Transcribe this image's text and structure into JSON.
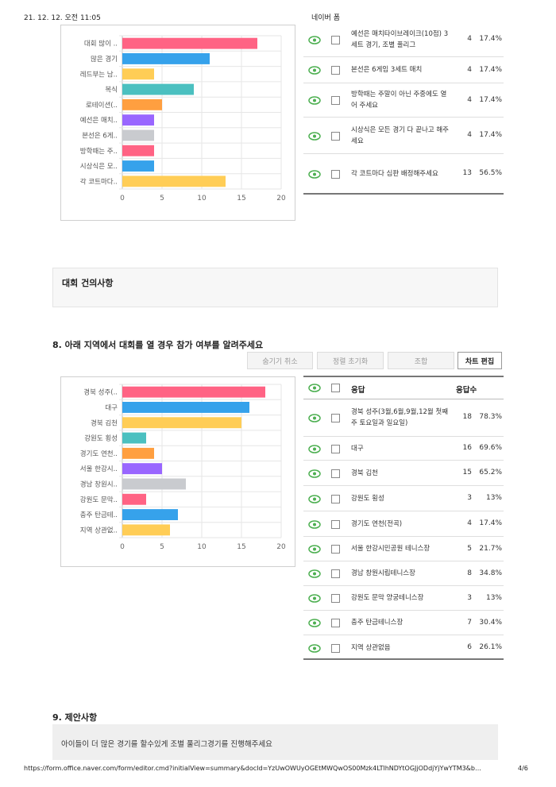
{
  "header": {
    "date": "21. 12. 12. 오전 11:05",
    "title": "네이버 폼"
  },
  "footer": {
    "url": "https://form.office.naver.com/form/editor.cmd?initialView=summary&docId=YzUwOWUyOGEtMWQwOS00Mzk4LTlhNDYtOGJjODdjYjYwYTM3&b…",
    "page": "4/6"
  },
  "colors": {
    "pink": "#ff6384",
    "blue": "#36a2eb",
    "yellow": "#ffcd56",
    "teal": "#4bc0c0",
    "orange": "#ff9f40",
    "purple": "#9966ff",
    "gray": "#c9cbcf",
    "eye": "#4caf50"
  },
  "q7": {
    "rows": [
      {
        "text": "예선은 매치타이브레이크(10점) 3세트 경기, 조별 풀리그",
        "count": "4",
        "pct": "17.4%"
      },
      {
        "text": "본선은 6게임 3세트 매치",
        "count": "4",
        "pct": "17.4%"
      },
      {
        "text": "방학때는 주말이 아닌 주중에도 열어 주세요",
        "count": "4",
        "pct": "17.4%"
      },
      {
        "text": "시상식은 모든 경기 다 끝나고 해주세요",
        "count": "4",
        "pct": "17.4%"
      },
      {
        "text": "각 코트마다 심판 배정해주세요",
        "count": "13",
        "pct": "56.5%"
      }
    ]
  },
  "chart_data": [
    {
      "type": "bar",
      "orientation": "horizontal",
      "categories": [
        "대회 많이 ..",
        "많은 경기",
        "레드부는 남..",
        "복식",
        "로테이션(..",
        "예선은 매치..",
        "본선은 6게..",
        "방학때는 주..",
        "시상식은 모..",
        "각 코트마다.."
      ],
      "values": [
        17,
        11,
        4,
        9,
        5,
        4,
        4,
        4,
        4,
        13
      ],
      "colors": [
        "#ff6384",
        "#36a2eb",
        "#ffcd56",
        "#4bc0c0",
        "#ff9f40",
        "#9966ff",
        "#c9cbcf",
        "#ff6384",
        "#36a2eb",
        "#ffcd56"
      ],
      "xticks": [
        "0",
        "5",
        "10",
        "15",
        "20"
      ],
      "xlim": [
        0,
        20
      ],
      "grid": true
    },
    {
      "type": "bar",
      "orientation": "horizontal",
      "categories": [
        "경북 성주(..",
        "대구",
        "경북 김천",
        "강원도 횡성",
        "경기도 연천..",
        "서울 한강시..",
        "경남 창원시..",
        "강원도 문막..",
        "충주 탄금테..",
        "지역 상관없.."
      ],
      "values": [
        18,
        16,
        15,
        3,
        4,
        5,
        8,
        3,
        7,
        6
      ],
      "colors": [
        "#ff6384",
        "#36a2eb",
        "#ffcd56",
        "#4bc0c0",
        "#ff9f40",
        "#9966ff",
        "#c9cbcf",
        "#ff6384",
        "#36a2eb",
        "#ffcd56"
      ],
      "xticks": [
        "0",
        "5",
        "10",
        "15",
        "20"
      ],
      "xlim": [
        0,
        20
      ],
      "grid": true
    }
  ],
  "section_suggest": {
    "title": "대회 건의사항"
  },
  "q8": {
    "title": "8. 아래 지역에서 대회를 열 경우 참가 여부를 알려주세요",
    "buttons": {
      "unhide": "숨기기 취소",
      "reset_sort": "정렬 초기화",
      "combine": "조합",
      "edit_chart": "차트 편집"
    },
    "table_headers": {
      "response": "응답",
      "count": "응답수"
    },
    "rows": [
      {
        "text": "경북 성주(3월,6월,9월,12월 첫째주 토요일과 일요일)",
        "count": "18",
        "pct": "78.3%"
      },
      {
        "text": "대구",
        "count": "16",
        "pct": "69.6%"
      },
      {
        "text": "경북 김천",
        "count": "15",
        "pct": "65.2%"
      },
      {
        "text": "강원도 횡성",
        "count": "3",
        "pct": "13%"
      },
      {
        "text": "경기도 연천(전곡)",
        "count": "4",
        "pct": "17.4%"
      },
      {
        "text": "서울 한강시민공원 테니스장",
        "count": "5",
        "pct": "21.7%"
      },
      {
        "text": "경남 창원시립테니스장",
        "count": "8",
        "pct": "34.8%"
      },
      {
        "text": "강원도 문막 양궁테니스장",
        "count": "3",
        "pct": "13%"
      },
      {
        "text": "충주 탄금테니스장",
        "count": "7",
        "pct": "30.4%"
      },
      {
        "text": "지역 상관없음",
        "count": "6",
        "pct": "26.1%"
      }
    ]
  },
  "q9": {
    "title": "9. 제안사항",
    "answer": "아이들이 더 많은 경기를 할수있게 조별 풀리그경기를 진행해주세요"
  }
}
